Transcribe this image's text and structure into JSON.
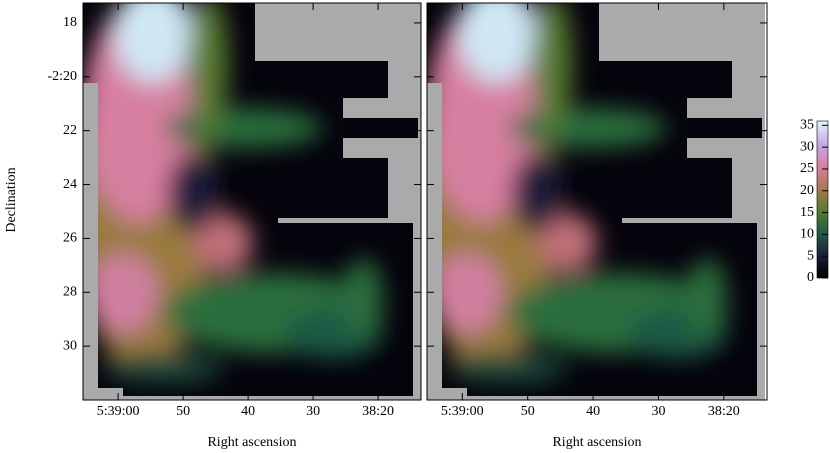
{
  "chart_data": {
    "type": "image",
    "xlabel": "Right ascension",
    "ylabel": "Declination",
    "xlim": [
      65.4,
      13.4
    ],
    "xticks": [
      {
        "value": 60,
        "label": "5:39:00"
      },
      50,
      40,
      30,
      {
        "value": 20,
        "label": "38:20"
      }
    ],
    "ylim": [
      17.26,
      32
    ],
    "yticks": [
      18,
      {
        "value": 20,
        "label": "-2:20"
      },
      22,
      24,
      26,
      28,
      30
    ],
    "colorbar": {
      "clim": [
        0,
        36
      ],
      "ticks": [
        0,
        5,
        10,
        15,
        20,
        25,
        30,
        35
      ]
    }
  }
}
